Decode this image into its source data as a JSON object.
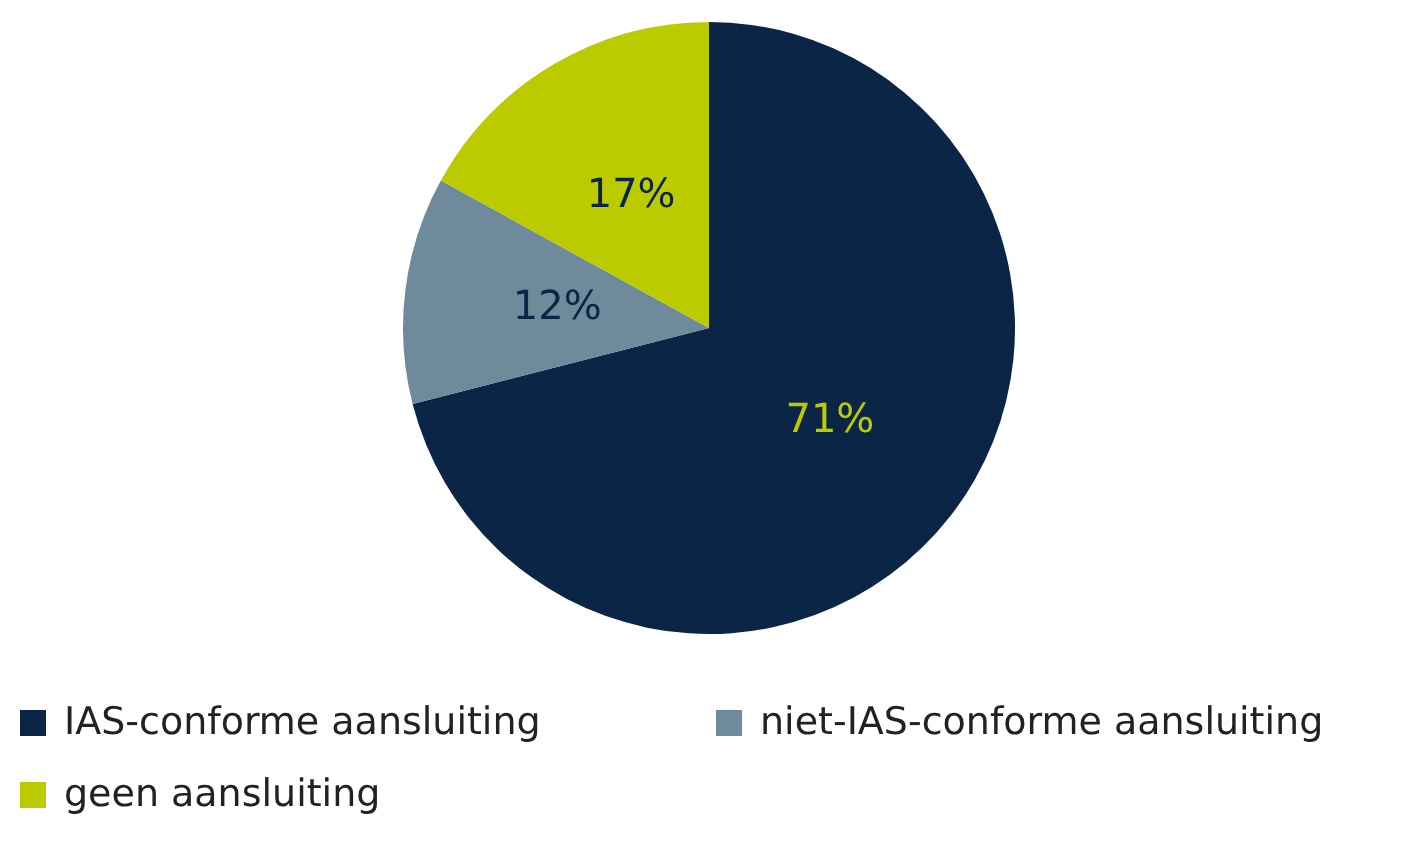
{
  "chart_data": {
    "type": "pie",
    "categories": [
      "IAS-conforme aansluiting",
      "niet-IAS-conforme aansluiting",
      "geen aansluiting"
    ],
    "values": [
      71,
      12,
      17
    ],
    "colors": [
      "#0b2546",
      "#6e8a9b",
      "#bccb00"
    ],
    "value_labels": [
      "71%",
      "12%",
      "17%"
    ],
    "legend": "bottom"
  }
}
